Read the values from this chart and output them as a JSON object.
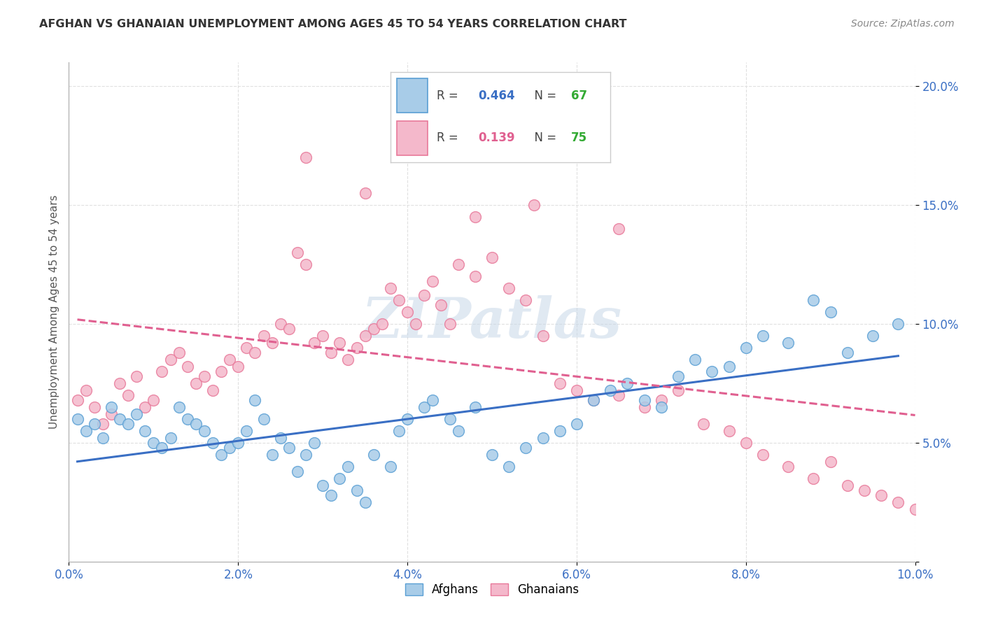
{
  "title": "AFGHAN VS GHANAIAN UNEMPLOYMENT AMONG AGES 45 TO 54 YEARS CORRELATION CHART",
  "source": "Source: ZipAtlas.com",
  "ylabel": "Unemployment Among Ages 45 to 54 years",
  "xlim": [
    0.0,
    0.1
  ],
  "ylim": [
    0.0,
    0.21
  ],
  "xticks": [
    0.0,
    0.02,
    0.04,
    0.06,
    0.08,
    0.1
  ],
  "yticks": [
    0.0,
    0.05,
    0.1,
    0.15,
    0.2
  ],
  "xtick_labels": [
    "0.0%",
    "2.0%",
    "4.0%",
    "6.0%",
    "8.0%",
    "10.0%"
  ],
  "ytick_labels": [
    "",
    "5.0%",
    "10.0%",
    "15.0%",
    "20.0%"
  ],
  "afghan_color": "#a8cce8",
  "ghanaian_color": "#f4b8cb",
  "afghan_edge_color": "#5a9fd4",
  "ghanaian_edge_color": "#e8799a",
  "afghan_line_color": "#3a6fc4",
  "ghanaian_line_color": "#e06090",
  "R_afghan": 0.464,
  "N_afghan": 67,
  "R_ghanaian": 0.139,
  "N_ghanaian": 75,
  "watermark": "ZIPatlas",
  "watermark_color": "#c8d8e8",
  "background_color": "#ffffff",
  "grid_color": "#e0e0e0",
  "legend_R_color_afghan": "#3a6fc4",
  "legend_R_color_ghanaian": "#e06090",
  "legend_N_color": "#33aa33",
  "afghan_scatter_x": [
    0.001,
    0.002,
    0.003,
    0.004,
    0.005,
    0.006,
    0.007,
    0.008,
    0.009,
    0.01,
    0.011,
    0.012,
    0.013,
    0.014,
    0.015,
    0.016,
    0.017,
    0.018,
    0.019,
    0.02,
    0.021,
    0.022,
    0.023,
    0.024,
    0.025,
    0.026,
    0.027,
    0.028,
    0.029,
    0.03,
    0.031,
    0.032,
    0.033,
    0.034,
    0.035,
    0.036,
    0.038,
    0.039,
    0.04,
    0.042,
    0.043,
    0.045,
    0.046,
    0.048,
    0.05,
    0.052,
    0.054,
    0.056,
    0.058,
    0.06,
    0.062,
    0.064,
    0.066,
    0.068,
    0.07,
    0.072,
    0.074,
    0.076,
    0.078,
    0.08,
    0.082,
    0.085,
    0.088,
    0.09,
    0.092,
    0.095,
    0.098
  ],
  "afghan_scatter_y": [
    0.06,
    0.055,
    0.058,
    0.052,
    0.065,
    0.06,
    0.058,
    0.062,
    0.055,
    0.05,
    0.048,
    0.052,
    0.065,
    0.06,
    0.058,
    0.055,
    0.05,
    0.045,
    0.048,
    0.05,
    0.055,
    0.068,
    0.06,
    0.045,
    0.052,
    0.048,
    0.038,
    0.045,
    0.05,
    0.032,
    0.028,
    0.035,
    0.04,
    0.03,
    0.025,
    0.045,
    0.04,
    0.055,
    0.06,
    0.065,
    0.068,
    0.06,
    0.055,
    0.065,
    0.045,
    0.04,
    0.048,
    0.052,
    0.055,
    0.058,
    0.068,
    0.072,
    0.075,
    0.068,
    0.065,
    0.078,
    0.085,
    0.08,
    0.082,
    0.09,
    0.095,
    0.092,
    0.11,
    0.105,
    0.088,
    0.095,
    0.1
  ],
  "ghanaian_scatter_x": [
    0.001,
    0.002,
    0.003,
    0.004,
    0.005,
    0.006,
    0.007,
    0.008,
    0.009,
    0.01,
    0.011,
    0.012,
    0.013,
    0.014,
    0.015,
    0.016,
    0.017,
    0.018,
    0.019,
    0.02,
    0.021,
    0.022,
    0.023,
    0.024,
    0.025,
    0.026,
    0.027,
    0.028,
    0.029,
    0.03,
    0.031,
    0.032,
    0.033,
    0.034,
    0.035,
    0.036,
    0.037,
    0.038,
    0.039,
    0.04,
    0.041,
    0.042,
    0.043,
    0.044,
    0.045,
    0.046,
    0.048,
    0.05,
    0.052,
    0.054,
    0.056,
    0.058,
    0.06,
    0.062,
    0.065,
    0.068,
    0.07,
    0.072,
    0.075,
    0.078,
    0.08,
    0.082,
    0.085,
    0.088,
    0.09,
    0.092,
    0.094,
    0.096,
    0.098,
    0.1,
    0.028,
    0.035,
    0.048,
    0.055,
    0.065
  ],
  "ghanaian_scatter_y": [
    0.068,
    0.072,
    0.065,
    0.058,
    0.062,
    0.075,
    0.07,
    0.078,
    0.065,
    0.068,
    0.08,
    0.085,
    0.088,
    0.082,
    0.075,
    0.078,
    0.072,
    0.08,
    0.085,
    0.082,
    0.09,
    0.088,
    0.095,
    0.092,
    0.1,
    0.098,
    0.13,
    0.125,
    0.092,
    0.095,
    0.088,
    0.092,
    0.085,
    0.09,
    0.095,
    0.098,
    0.1,
    0.115,
    0.11,
    0.105,
    0.1,
    0.112,
    0.118,
    0.108,
    0.1,
    0.125,
    0.12,
    0.128,
    0.115,
    0.11,
    0.095,
    0.075,
    0.072,
    0.068,
    0.07,
    0.065,
    0.068,
    0.072,
    0.058,
    0.055,
    0.05,
    0.045,
    0.04,
    0.035,
    0.042,
    0.032,
    0.03,
    0.028,
    0.025,
    0.022,
    0.17,
    0.155,
    0.145,
    0.15,
    0.14
  ]
}
